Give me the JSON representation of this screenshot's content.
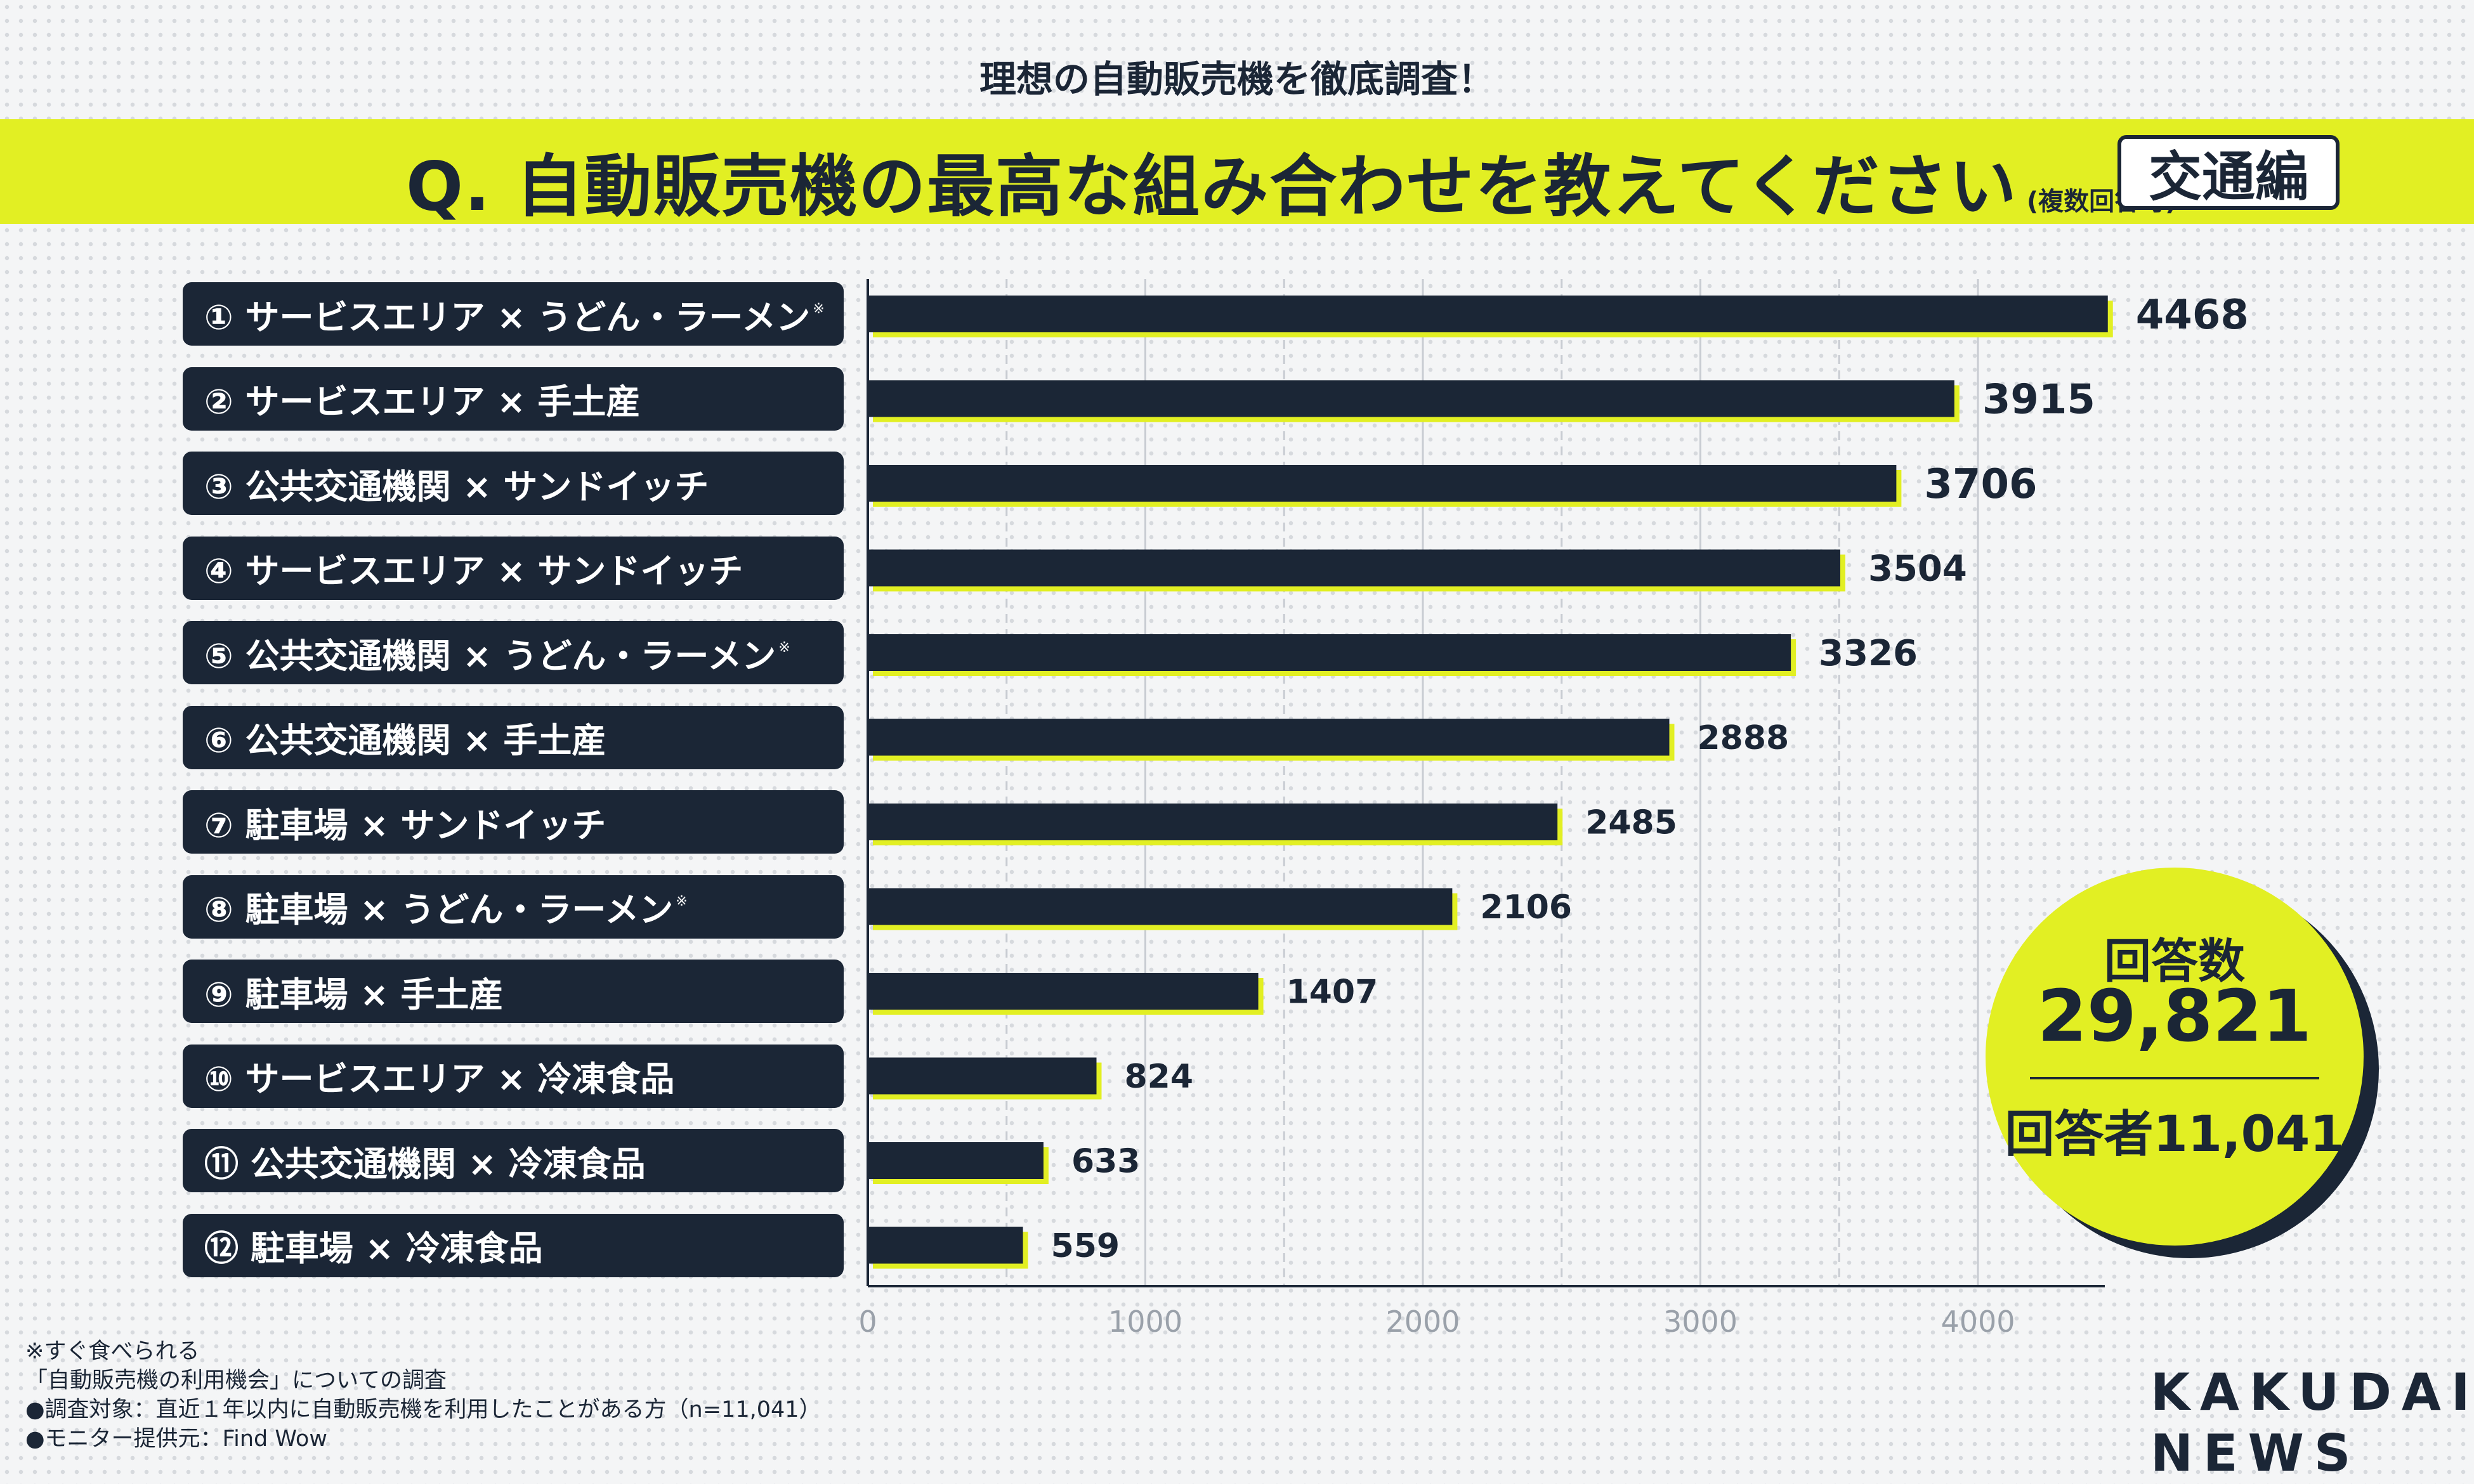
{
  "header": {
    "subtitle": "理想の自動販売機を徹底調査！",
    "question": "Q. 自動販売機の最高な組み合わせを教えてください",
    "question_note": "(複数回答可)",
    "edition": "交通編"
  },
  "chart_data": {
    "type": "bar",
    "orientation": "horizontal",
    "title": "Q. 自動販売機の最高な組み合わせを教えてください",
    "categories": [
      "① サービスエリア × うどん・ラーメン",
      "② サービスエリア × 手土産",
      "③ 公共交通機関 × サンドイッチ",
      "④ サービスエリア × サンドイッチ",
      "⑤ 公共交通機関 × うどん・ラーメン",
      "⑥ 公共交通機関 × 手土産",
      "⑦ 駐車場 × サンドイッチ",
      "⑧ 駐車場 × うどん・ラーメン",
      "⑨ 駐車場 × 手土産",
      "⑩ サービスエリア × 冷凍食品",
      "⑪ 公共交通機関 × 冷凍食品",
      "⑫ 駐車場 × 冷凍食品"
    ],
    "asterisk_marker": "※",
    "asterisk_on": [
      0,
      4,
      7
    ],
    "values": [
      4468,
      3915,
      3706,
      3504,
      3326,
      2888,
      2485,
      2106,
      1407,
      824,
      633,
      559
    ],
    "value_labels": [
      "4468",
      "3915",
      "3706",
      "3504",
      "3326",
      "2888",
      "2485",
      "2106",
      "1407",
      "824",
      "633",
      "559"
    ],
    "xlim": [
      0,
      4500
    ],
    "xticks": [
      0,
      1000,
      2000,
      3000,
      4000
    ],
    "xtick_labels": [
      "0",
      "1000",
      "2000",
      "3000",
      "4000"
    ],
    "grid": true,
    "xlabel": "",
    "ylabel": ""
  },
  "summary": {
    "label": "回答数",
    "value": "29,821",
    "respondents": "回答者11,041"
  },
  "footnotes": [
    "※すぐ食べられる",
    "「自動販売機の利用機会」についての調査",
    "●調査対象：直近１年以内に自動販売機を利用したことがある方（n=11,041）",
    "●モニター提供元：Find Wow"
  ],
  "logo": {
    "line1": "KAKUDAI",
    "line2": "NEWS"
  },
  "colors": {
    "accent": "#e2ef23",
    "dark": "#1b2636",
    "grid": "#c8ccd2",
    "background": "#f4f5f6"
  }
}
